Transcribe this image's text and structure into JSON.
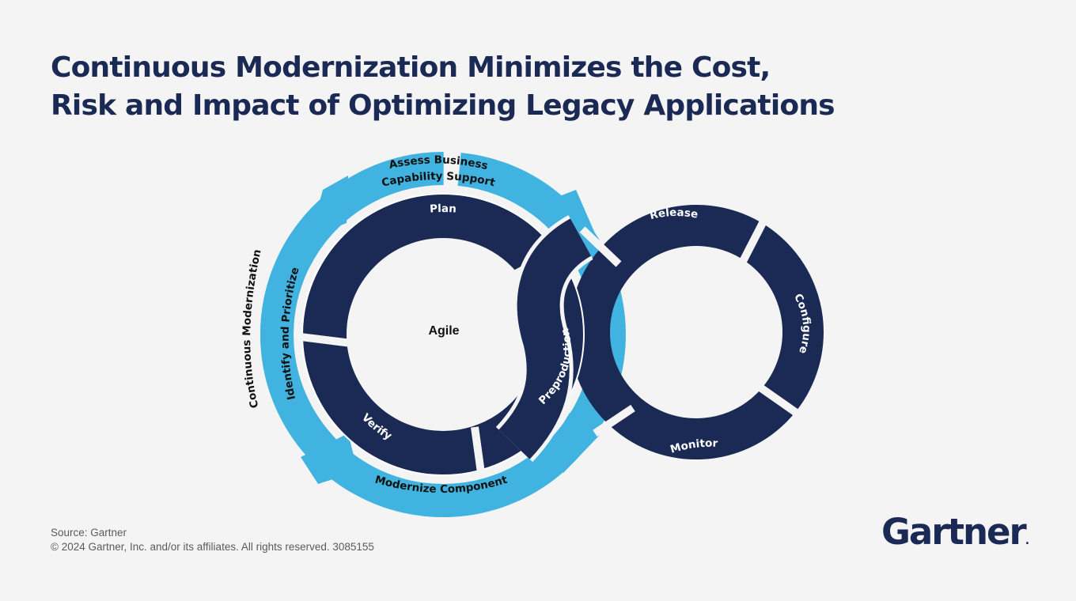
{
  "title": {
    "line1": "Continuous Modernization Minimizes the Cost,",
    "line2": "Risk and Impact of Optimizing Legacy Applications"
  },
  "diagram": {
    "outer_label": "Continuous Modernization",
    "center_label": "Agile",
    "outer_cycle": [
      "Assess Business",
      "Capability Support",
      "Identify and Prioritize",
      "Modernize Component"
    ],
    "inner_cycle": [
      "Plan",
      "Verify",
      "Preproduction"
    ],
    "right_cycle": [
      "Release",
      "Configure",
      "Monitor"
    ],
    "colors": {
      "navy": "#1a2a55",
      "light_blue": "#41b3e0",
      "background": "#f4f4f4"
    }
  },
  "footer": {
    "source": "Source: Gartner",
    "copyright": "© 2024 Gartner, Inc. and/or its affiliates. All rights reserved. 3085155"
  },
  "logo": {
    "text": "Gartner",
    "mark": "."
  }
}
